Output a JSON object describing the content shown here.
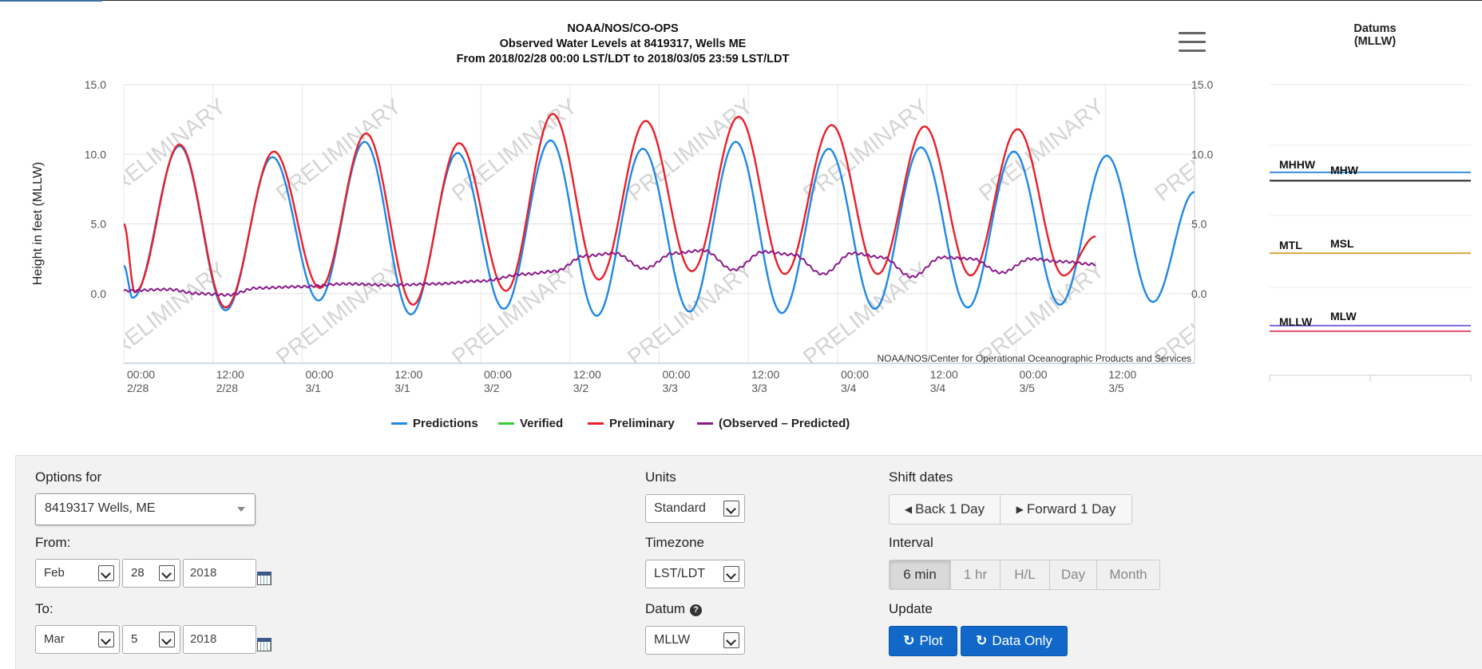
{
  "header": {
    "title_line1": "NOAA/NOS/CO-OPS",
    "title_line2": "Observed Water Levels at 8419317, Wells ME",
    "title_line3": "From 2018/02/28 00:00 LST/LDT to 2018/03/05 23:59 LST/LDT"
  },
  "chart_data": {
    "type": "line",
    "ylabel": "Height in feet (MLLW)",
    "ylim": [
      -5,
      15
    ],
    "yticks": [
      "15.0",
      "10.0",
      "5.0",
      "0.0"
    ],
    "ytick_values": [
      15,
      10,
      5,
      0
    ],
    "x_unit": "hours since 2018/02/28 00:00",
    "xlim": [
      0,
      144
    ],
    "xticks": [
      {
        "time": "00:00",
        "date": "2/28",
        "h": 0
      },
      {
        "time": "12:00",
        "date": "2/28",
        "h": 12
      },
      {
        "time": "00:00",
        "date": "3/1",
        "h": 24
      },
      {
        "time": "12:00",
        "date": "3/1",
        "h": 36
      },
      {
        "time": "00:00",
        "date": "3/2",
        "h": 48
      },
      {
        "time": "12:00",
        "date": "3/2",
        "h": 60
      },
      {
        "time": "00:00",
        "date": "3/3",
        "h": 72
      },
      {
        "time": "12:00",
        "date": "3/3",
        "h": 84
      },
      {
        "time": "00:00",
        "date": "3/4",
        "h": 96
      },
      {
        "time": "12:00",
        "date": "3/4",
        "h": 108
      },
      {
        "time": "00:00",
        "date": "3/5",
        "h": 120
      },
      {
        "time": "12:00",
        "date": "3/5",
        "h": 132
      }
    ],
    "watermark": "PRELIMINARY",
    "credit": "NOAA/NOS/Center for Operational Oceanographic Products and Services",
    "series": [
      {
        "name": "Predictions",
        "color": "#1f88e5",
        "points": [
          [
            0,
            2.0
          ],
          [
            1.2,
            -0.3
          ],
          [
            7.5,
            10.6
          ],
          [
            13.7,
            -1.2
          ],
          [
            20.0,
            9.8
          ],
          [
            26.2,
            -0.5
          ],
          [
            32.4,
            10.9
          ],
          [
            38.6,
            -1.5
          ],
          [
            44.9,
            10.1
          ],
          [
            51.1,
            -1.1
          ],
          [
            57.4,
            11.0
          ],
          [
            63.6,
            -1.6
          ],
          [
            69.8,
            10.4
          ],
          [
            76.1,
            -1.3
          ],
          [
            82.3,
            10.9
          ],
          [
            88.5,
            -1.4
          ],
          [
            94.8,
            10.4
          ],
          [
            101.0,
            -1.1
          ],
          [
            107.2,
            10.5
          ],
          [
            113.5,
            -1.0
          ],
          [
            119.7,
            10.2
          ],
          [
            125.9,
            -0.8
          ],
          [
            132.2,
            9.9
          ],
          [
            138.4,
            -0.6
          ],
          [
            144,
            7.3
          ]
        ]
      },
      {
        "name": "Verified",
        "color": "#33cc33",
        "points": []
      },
      {
        "name": "Preliminary",
        "color": "#e8202a",
        "points": [
          [
            0,
            5.0
          ],
          [
            1.5,
            0.1
          ],
          [
            7.5,
            10.7
          ],
          [
            13.7,
            -1.0
          ],
          [
            20.2,
            10.2
          ],
          [
            26.4,
            0.4
          ],
          [
            32.6,
            11.5
          ],
          [
            38.9,
            -0.8
          ],
          [
            45.1,
            10.8
          ],
          [
            51.4,
            0.2
          ],
          [
            57.7,
            12.9
          ],
          [
            63.9,
            1.0
          ],
          [
            70.2,
            12.4
          ],
          [
            76.4,
            1.6
          ],
          [
            82.7,
            12.7
          ],
          [
            88.9,
            1.4
          ],
          [
            95.2,
            12.1
          ],
          [
            101.4,
            1.4
          ],
          [
            107.7,
            12.0
          ],
          [
            113.9,
            1.3
          ],
          [
            120.2,
            11.8
          ],
          [
            126.4,
            1.3
          ],
          [
            130.7,
            4.1
          ]
        ]
      },
      {
        "name": "(Observed - Predicted)",
        "color": "#8a1a8a",
        "points": [
          [
            0,
            0.2
          ],
          [
            6,
            0.3
          ],
          [
            10,
            0.0
          ],
          [
            14,
            -0.1
          ],
          [
            18,
            0.4
          ],
          [
            24,
            0.5
          ],
          [
            30,
            0.7
          ],
          [
            36,
            0.6
          ],
          [
            42,
            0.7
          ],
          [
            48,
            0.9
          ],
          [
            54,
            1.4
          ],
          [
            58,
            1.6
          ],
          [
            62,
            2.7
          ],
          [
            66,
            2.9
          ],
          [
            70,
            1.8
          ],
          [
            74,
            2.9
          ],
          [
            78,
            3.1
          ],
          [
            82,
            1.7
          ],
          [
            86,
            3.0
          ],
          [
            90,
            2.8
          ],
          [
            94,
            1.4
          ],
          [
            98,
            2.9
          ],
          [
            102,
            2.6
          ],
          [
            106,
            1.2
          ],
          [
            110,
            2.6
          ],
          [
            114,
            2.5
          ],
          [
            118,
            1.5
          ],
          [
            122,
            2.5
          ],
          [
            126,
            2.3
          ],
          [
            130.7,
            2.1
          ]
        ]
      }
    ]
  },
  "legend": [
    {
      "label": "Predictions",
      "color": "#1f88e5"
    },
    {
      "label": "Verified",
      "color": "#33cc33"
    },
    {
      "label": "Preliminary",
      "color": "#e8202a"
    },
    {
      "label": "(Observed – Predicted)",
      "color": "#8a1a8a"
    }
  ],
  "datums": {
    "title": "Datums\n(MLLW)",
    "lines": [
      {
        "left": "MHHW",
        "right": "MHW",
        "value": 8.7,
        "color": "#3a8fd8",
        "value2": 8.1,
        "color2": "#222222"
      },
      {
        "left": "MTL",
        "right": "MSL",
        "value": 2.9,
        "color": "#d9a441"
      },
      {
        "left": "MLLW",
        "right": "MLW",
        "value": -2.3,
        "color": "#7a6ae0",
        "value2": -2.7,
        "color2": "#e05070"
      }
    ]
  },
  "options": {
    "options_for_label": "Options for",
    "station": "8419317 Wells, ME",
    "from_label": "From:",
    "from_month": "Feb",
    "from_day": "28",
    "from_year": "2018",
    "to_label": "To:",
    "to_month": "Mar",
    "to_day": "5",
    "to_year": "2018",
    "units_label": "Units",
    "units": "Standard",
    "timezone_label": "Timezone",
    "timezone": "LST/LDT",
    "datum_label": "Datum",
    "datum": "MLLW",
    "shift_label": "Shift dates",
    "back_label": "Back 1 Day",
    "forward_label": "Forward 1 Day",
    "interval_label": "Interval",
    "intervals": [
      "6 min",
      "1 hr",
      "H/L",
      "Day",
      "Month"
    ],
    "active_interval": "6 min",
    "update_label": "Update",
    "plot_label": "Plot",
    "data_only_label": "Data Only"
  }
}
